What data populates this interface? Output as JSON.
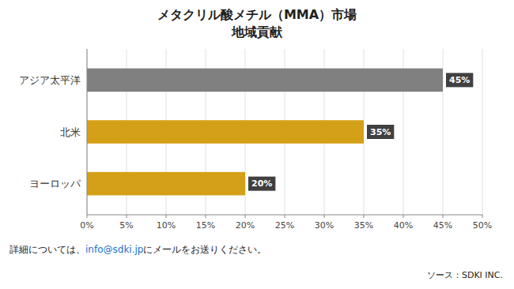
{
  "chart_data": {
    "type": "bar",
    "orientation": "horizontal",
    "title": "メタクリル酸メチル（MMA）市場",
    "subtitle": "地域貢献",
    "categories": [
      "ヨーロッパ",
      "北米",
      "アジア太平洋"
    ],
    "values": [
      20,
      35,
      45
    ],
    "value_labels": [
      "20%",
      "35%",
      "45%"
    ],
    "data_labels": true,
    "colors": [
      "#D4A017",
      "#D4A017",
      "#808080"
    ],
    "xlim": [
      0,
      50
    ],
    "xticks": [
      {
        "value": 0,
        "label": "0%"
      },
      {
        "value": 5,
        "label": "5%"
      },
      {
        "value": 10,
        "label": "10%"
      },
      {
        "value": 15,
        "label": "15%"
      },
      {
        "value": 20,
        "label": "20%"
      },
      {
        "value": 25,
        "label": "25%"
      },
      {
        "value": 30,
        "label": "30%"
      },
      {
        "value": 35,
        "label": "35%"
      },
      {
        "value": 40,
        "label": "40%"
      },
      {
        "value": 45,
        "label": "45%"
      },
      {
        "value": 50,
        "label": "50%"
      }
    ],
    "grid": true,
    "annotations": [
      "詳細については、",
      "info@sdki.jp",
      "にメールをお送りください。",
      "ソース：SDKI INC."
    ]
  }
}
